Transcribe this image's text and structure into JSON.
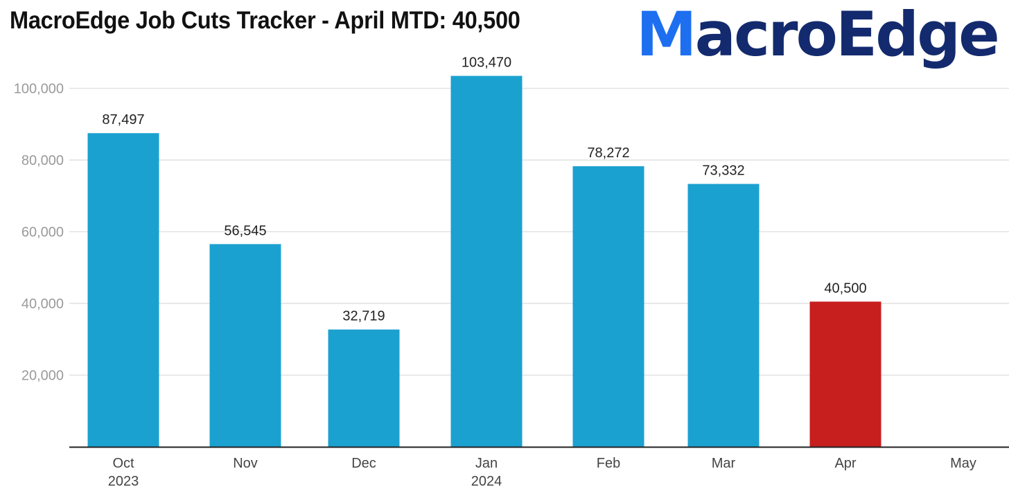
{
  "title": "MacroEdge Job Cuts Tracker - April MTD: 40,500",
  "logo": {
    "first_letter": "M",
    "rest": "acroEdge"
  },
  "colors": {
    "bar": "#1ba1d0",
    "highlight": "#c71e1e",
    "grid": "#e1e1e1",
    "axis": "#222222",
    "logo_m": "#1e6ff0",
    "logo_text": "#132a6e"
  },
  "chart_data": {
    "type": "bar",
    "title": "MacroEdge Job Cuts Tracker - April MTD: 40,500",
    "categories": [
      "Oct",
      "Nov",
      "Dec",
      "Jan",
      "Feb",
      "Mar",
      "Apr",
      "May"
    ],
    "sub_labels": [
      "2023",
      "",
      "",
      "2024",
      "",
      "",
      "",
      ""
    ],
    "values": [
      87497,
      56545,
      32719,
      103470,
      78272,
      73332,
      40500,
      null
    ],
    "data_labels": [
      "87,497",
      "56,545",
      "32,719",
      "103,470",
      "78,272",
      "73,332",
      "40,500",
      ""
    ],
    "highlight_index": 6,
    "yticks": [
      20000,
      40000,
      60000,
      80000,
      100000
    ],
    "ytick_labels": [
      "20,000",
      "40,000",
      "60,000",
      "80,000",
      "100,000"
    ],
    "ylim": [
      0,
      110000
    ],
    "grid": true,
    "legend": "none",
    "xlabel": "",
    "ylabel": ""
  }
}
